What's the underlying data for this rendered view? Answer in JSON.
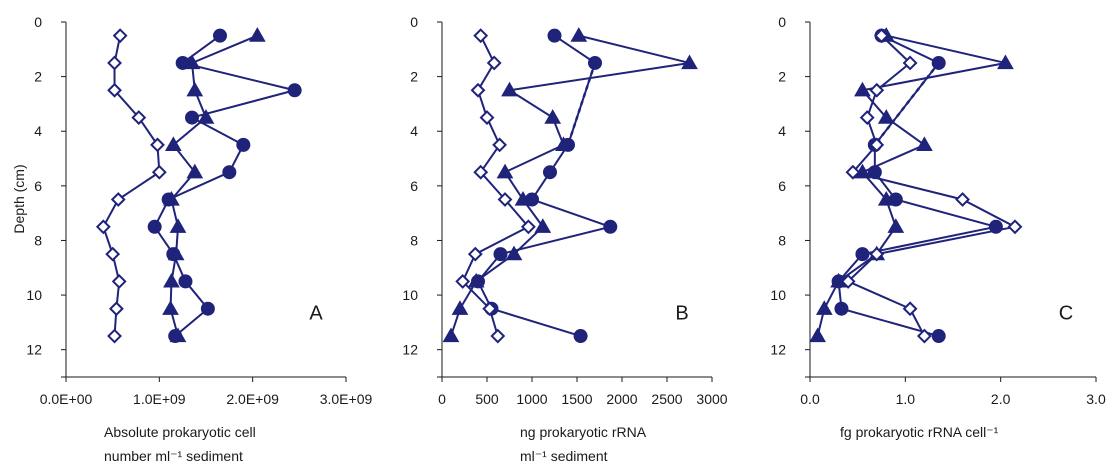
{
  "figure": {
    "y_axis_label": "Depth (cm)",
    "y_tick_labels": [
      "0",
      "2",
      "4",
      "6",
      "8",
      "10",
      "12"
    ]
  },
  "colors": {
    "series": "#1f237a",
    "open_fill": "#ffffff",
    "axis": "#1a1a1a"
  },
  "chart_data": [
    {
      "type": "line",
      "panel_label": "A",
      "xlabel_lines": [
        "Absolute prokaryotic cell",
        "number ml⁻¹ sediment"
      ],
      "x_tick_labels": [
        "0.0E+00",
        "1.0E+09",
        "2.0E+09",
        "3.0E+09"
      ],
      "x_ticks": [
        0,
        1000000000,
        2000000000,
        3000000000
      ],
      "xlim": [
        0,
        3000000000
      ],
      "ylim": [
        0,
        13
      ],
      "y_inverted": true,
      "series": [
        {
          "marker": "circle",
          "filled": true,
          "points": [
            [
              1650000000,
              0.5
            ],
            [
              1250000000,
              1.5
            ],
            [
              2450000000,
              2.5
            ],
            [
              1350000000,
              3.5
            ],
            [
              1900000000,
              4.5
            ],
            [
              1750000000,
              5.5
            ],
            [
              1100000000,
              6.5
            ],
            [
              950000000,
              7.5
            ],
            [
              1150000000,
              8.5
            ],
            [
              1280000000,
              9.5
            ],
            [
              1520000000,
              10.5
            ],
            [
              1170000000,
              11.5
            ]
          ]
        },
        {
          "marker": "triangle",
          "filled": true,
          "points": [
            [
              2050000000,
              0.5
            ],
            [
              1350000000,
              1.5
            ],
            [
              1380000000,
              2.5
            ],
            [
              1500000000,
              3.5
            ],
            [
              1150000000,
              4.5
            ],
            [
              1380000000,
              5.5
            ],
            [
              1130000000,
              6.5
            ],
            [
              1200000000,
              7.5
            ],
            [
              1180000000,
              8.5
            ],
            [
              1130000000,
              9.5
            ],
            [
              1120000000,
              10.5
            ],
            [
              1200000000,
              11.5
            ]
          ]
        },
        {
          "marker": "diamond",
          "filled": false,
          "points": [
            [
              580000000,
              0.5
            ],
            [
              520000000,
              1.5
            ],
            [
              520000000,
              2.5
            ],
            [
              780000000,
              3.5
            ],
            [
              980000000,
              4.5
            ],
            [
              1000000000,
              5.5
            ],
            [
              560000000,
              6.5
            ],
            [
              400000000,
              7.5
            ],
            [
              500000000,
              8.5
            ],
            [
              570000000,
              9.5
            ],
            [
              540000000,
              10.5
            ],
            [
              520000000,
              11.5
            ]
          ]
        }
      ]
    },
    {
      "type": "line",
      "panel_label": "B",
      "xlabel_lines": [
        "ng prokaryotic rRNA",
        "ml⁻¹ sediment"
      ],
      "x_tick_labels": [
        "0",
        "500",
        "1000",
        "1500",
        "2000",
        "2500",
        "3000"
      ],
      "x_ticks": [
        0,
        500,
        1000,
        1500,
        2000,
        2500,
        3000
      ],
      "xlim": [
        0,
        3000
      ],
      "ylim": [
        0,
        13
      ],
      "y_inverted": true,
      "series": [
        {
          "marker": "circle",
          "filled": true,
          "points": [
            [
              1250,
              0.5
            ],
            [
              1700,
              1.5
            ],
            [
              1400,
              4.5
            ],
            [
              1200,
              5.5
            ],
            [
              1000,
              6.5
            ],
            [
              1870,
              7.5
            ],
            [
              650,
              8.5
            ],
            [
              400,
              9.5
            ],
            [
              550,
              10.5
            ],
            [
              1540,
              11.5
            ]
          ]
        },
        {
          "marker": "triangle",
          "filled": true,
          "points": [
            [
              1520,
              0.5
            ],
            [
              2750,
              1.5
            ],
            [
              750,
              2.5
            ],
            [
              1230,
              3.5
            ],
            [
              1350,
              4.5
            ],
            [
              700,
              5.5
            ],
            [
              900,
              6.5
            ],
            [
              1120,
              7.5
            ],
            [
              800,
              8.5
            ],
            [
              380,
              9.5
            ],
            [
              200,
              10.5
            ],
            [
              100,
              11.5
            ]
          ]
        },
        {
          "marker": "diamond",
          "filled": false,
          "points": [
            [
              430,
              0.5
            ],
            [
              580,
              1.5
            ],
            [
              400,
              2.5
            ],
            [
              500,
              3.5
            ],
            [
              640,
              4.5
            ],
            [
              430,
              5.5
            ],
            [
              700,
              6.5
            ],
            [
              960,
              7.5
            ],
            [
              370,
              8.5
            ],
            [
              230,
              9.5
            ],
            [
              530,
              10.5
            ],
            [
              620,
              11.5
            ]
          ]
        }
      ],
      "dotted_link": [
        [
          1700,
          1.5
        ],
        [
          1400,
          4.5
        ]
      ]
    },
    {
      "type": "line",
      "panel_label": "C",
      "xlabel_lines": [
        "fg prokaryotic rRNA cell⁻¹"
      ],
      "x_tick_labels": [
        "0.0",
        "1.0",
        "2.0",
        "3.0"
      ],
      "x_ticks": [
        0,
        1,
        2,
        3
      ],
      "xlim": [
        0,
        3
      ],
      "ylim": [
        0,
        13
      ],
      "y_inverted": true,
      "series": [
        {
          "marker": "circle",
          "filled": true,
          "points": [
            [
              0.75,
              0.5
            ],
            [
              1.35,
              1.5
            ],
            [
              0.68,
              4.5
            ],
            [
              0.68,
              5.5
            ],
            [
              0.9,
              6.5
            ],
            [
              1.95,
              7.5
            ],
            [
              0.55,
              8.5
            ],
            [
              0.3,
              9.5
            ],
            [
              0.33,
              10.5
            ],
            [
              1.35,
              11.5
            ]
          ]
        },
        {
          "marker": "triangle",
          "filled": true,
          "points": [
            [
              0.8,
              0.5
            ],
            [
              2.05,
              1.5
            ],
            [
              0.55,
              2.5
            ],
            [
              0.8,
              3.5
            ],
            [
              1.2,
              4.5
            ],
            [
              0.55,
              5.5
            ],
            [
              0.8,
              6.5
            ],
            [
              0.9,
              7.5
            ],
            [
              0.7,
              8.5
            ],
            [
              0.3,
              9.5
            ],
            [
              0.15,
              10.5
            ],
            [
              0.08,
              11.5
            ]
          ]
        },
        {
          "marker": "diamond",
          "filled": false,
          "points": [
            [
              0.75,
              0.5
            ],
            [
              1.05,
              1.5
            ],
            [
              0.7,
              2.5
            ],
            [
              0.6,
              3.5
            ],
            [
              0.7,
              4.5
            ],
            [
              0.45,
              5.5
            ],
            [
              1.6,
              6.5
            ],
            [
              2.15,
              7.5
            ],
            [
              0.7,
              8.5
            ],
            [
              0.4,
              9.5
            ],
            [
              1.05,
              10.5
            ],
            [
              1.2,
              11.5
            ]
          ]
        }
      ],
      "dotted_link": [
        [
          1.35,
          1.5
        ],
        [
          0.68,
          4.5
        ]
      ]
    }
  ]
}
